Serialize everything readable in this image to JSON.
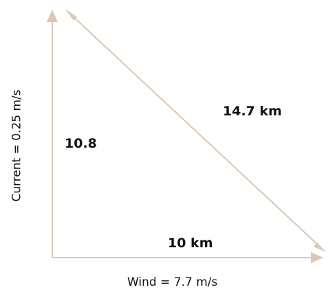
{
  "colors": {
    "arrow": "#dcc7b2",
    "text": "#111111"
  },
  "labels": {
    "hypotenuse": "14.7 km",
    "vertical_value": "10.8",
    "horizontal_value": "10 km",
    "wind": "Wind = 7.7 m/s",
    "current": "Current = 0.25 m/s"
  }
}
